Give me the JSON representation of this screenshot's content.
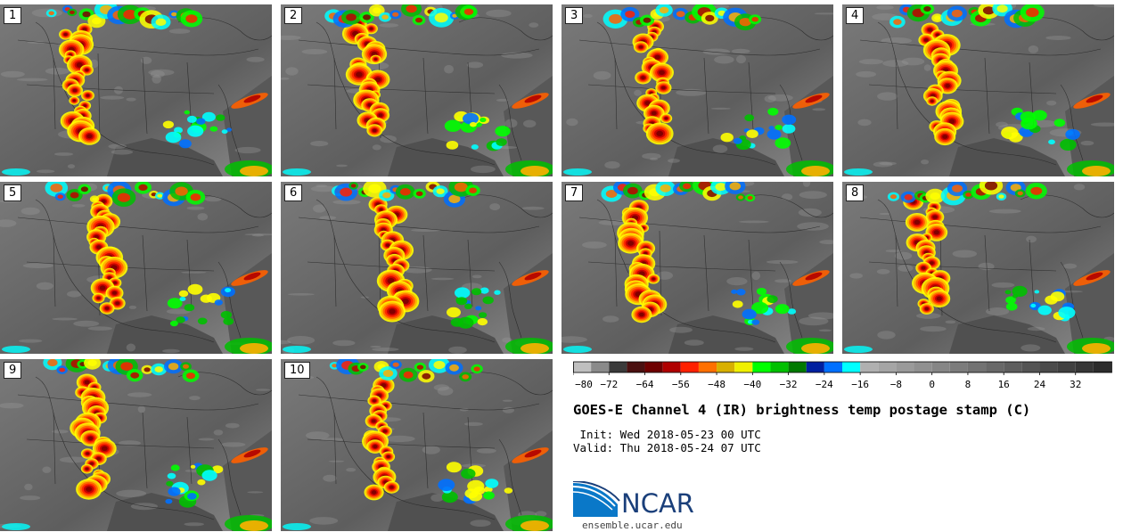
{
  "chart_data": {
    "type": "heatmap",
    "title": "GOES-E Channel 4 (IR) brightness temp postage stamp (C)",
    "init_text": " Init: Wed 2018-05-23 00 UTC",
    "valid_text": "Valid: Thu 2018-05-24 07 UTC",
    "panels": [
      "1",
      "2",
      "3",
      "4",
      "5",
      "6",
      "7",
      "8",
      "9",
      "10"
    ],
    "colorbar": {
      "vmin": -80,
      "vmax": 40,
      "step": 4,
      "tick_values": [
        -80,
        -72,
        -64,
        -56,
        -48,
        -40,
        -32,
        -24,
        -16,
        -8,
        0,
        8,
        16,
        24,
        32
      ],
      "tick_labels": [
        "−80",
        "−72",
        "−64",
        "−56",
        "−48",
        "−40",
        "−32",
        "−24",
        "−16",
        "−8",
        "0",
        "8",
        "16",
        "24",
        "32"
      ],
      "colors": [
        "#bfbfbf",
        "#8a8a8a",
        "#3a3a3a",
        "#4a1010",
        "#6e0000",
        "#b00000",
        "#ff2000",
        "#ff7000",
        "#d8b000",
        "#f0f000",
        "#00ff00",
        "#00c000",
        "#007a00",
        "#0020a0",
        "#0070ff",
        "#00ffff",
        "#b0b0b0",
        "#a5a5a5",
        "#9a9a9a",
        "#909090",
        "#868686",
        "#7c7c7c",
        "#727272",
        "#686868",
        "#5e5e5e",
        "#545454",
        "#4a4a4a",
        "#404040",
        "#363636",
        "#2c2c2c"
      ]
    }
  },
  "branding": {
    "logo_text": "NCAR",
    "url": "ensemble.ucar.edu"
  },
  "colors": {
    "background_land": "#6e6e6e",
    "ncar_blue": "#1a3f7a"
  }
}
